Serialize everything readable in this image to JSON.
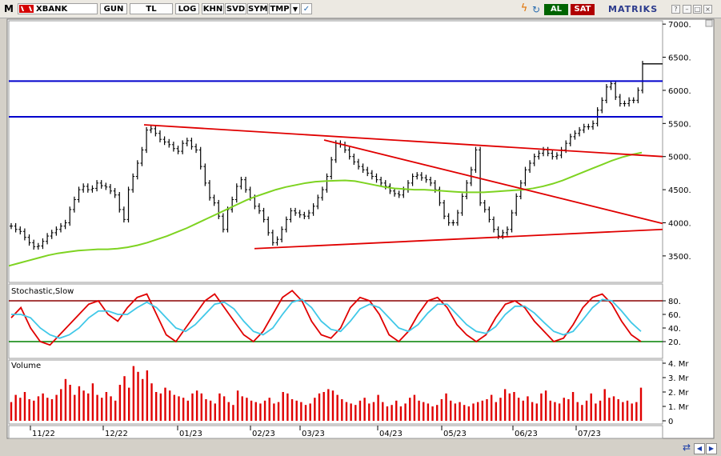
{
  "toolbar": {
    "logo": "M",
    "symbol": "XBANK",
    "buttons": [
      "GUN",
      "TL",
      "LOG",
      "KHN",
      "SVD",
      "SYM",
      "TMP"
    ],
    "buy_label": "AL",
    "sell_label": "SAT",
    "brand": "MATRIKS",
    "colors": {
      "buy": "#006400",
      "sell": "#b00000",
      "brand": "#2b3a8c"
    }
  },
  "chart_data": [
    {
      "type": "line",
      "panel": "price",
      "style": "ohlc-bars",
      "x_ticks": [
        "11/22",
        "12/22",
        "01/23",
        "02/23",
        "03/23",
        "04/23",
        "05/23",
        "06/23",
        "07/23"
      ],
      "y_ticks": [
        "7000.",
        "6500.",
        "6000.",
        "5500.",
        "5000.",
        "4500.",
        "4000.",
        "3500."
      ],
      "ylim": [
        3100,
        7050
      ],
      "grid": false,
      "close_series": [
        3950,
        3900,
        3870,
        3780,
        3700,
        3640,
        3650,
        3720,
        3800,
        3850,
        3900,
        3950,
        4000,
        4200,
        4350,
        4500,
        4550,
        4500,
        4520,
        4600,
        4560,
        4540,
        4480,
        4420,
        4200,
        4050,
        4500,
        4700,
        4900,
        5100,
        5400,
        5420,
        5350,
        5260,
        5220,
        5180,
        5120,
        5080,
        5200,
        5240,
        5150,
        5100,
        4850,
        4600,
        4380,
        4300,
        4100,
        3900,
        4200,
        4350,
        4550,
        4650,
        4500,
        4380,
        4250,
        4180,
        4050,
        3850,
        3700,
        3750,
        3900,
        4050,
        4180,
        4150,
        4120,
        4100,
        4150,
        4250,
        4380,
        4500,
        4700,
        4950,
        5200,
        5180,
        5100,
        5000,
        4920,
        4850,
        4800,
        4750,
        4700,
        4650,
        4600,
        4550,
        4480,
        4440,
        4420,
        4500,
        4600,
        4700,
        4720,
        4680,
        4650,
        4600,
        4500,
        4300,
        4100,
        4000,
        4000,
        4150,
        4400,
        4600,
        4800,
        5100,
        4300,
        4200,
        4050,
        3900,
        3800,
        3850,
        3900,
        4150,
        4400,
        4600,
        4800,
        4900,
        5000,
        5050,
        5100,
        5050,
        5000,
        5020,
        5100,
        5200,
        5300,
        5350,
        5400,
        5450,
        5450,
        5500,
        5700,
        5850,
        6050,
        6100,
        5900,
        5800,
        5800,
        5850,
        5850,
        6000,
        6400
      ],
      "indicators": {
        "moving_average": {
          "color": "#7ed321",
          "values": [
            3350,
            3390,
            3430,
            3470,
            3510,
            3540,
            3560,
            3580,
            3590,
            3600,
            3600,
            3610,
            3630,
            3660,
            3700,
            3750,
            3800,
            3860,
            3920,
            3990,
            4060,
            4130,
            4200,
            4270,
            4340,
            4400,
            4450,
            4500,
            4540,
            4570,
            4600,
            4620,
            4630,
            4635,
            4640,
            4630,
            4600,
            4570,
            4540,
            4520,
            4510,
            4500,
            4500,
            4490,
            4480,
            4470,
            4460,
            4460,
            4460,
            4470,
            4480,
            4490,
            4500,
            4520,
            4550,
            4590,
            4640,
            4700,
            4760,
            4820,
            4880,
            4940,
            4990,
            5030,
            5060
          ]
        },
        "trendlines": {
          "color": "#e00000"
        },
        "horizontal_levels": {
          "color": "#0000cc",
          "values": [
            6140,
            5600
          ]
        }
      }
    },
    {
      "type": "line",
      "panel": "oscillator",
      "title": "Stochastic,Slow",
      "y_ticks": [
        "80.",
        "60.",
        "40.",
        "20."
      ],
      "ylim": [
        0,
        100
      ],
      "levels": [
        {
          "value": 80,
          "color": "#8b0000"
        },
        {
          "value": 20,
          "color": "#008000"
        }
      ],
      "series": [
        {
          "color": "#e00000",
          "values": [
            55,
            70,
            40,
            20,
            15,
            30,
            45,
            60,
            75,
            80,
            60,
            50,
            70,
            85,
            90,
            60,
            30,
            20,
            40,
            60,
            80,
            90,
            70,
            50,
            30,
            20,
            35,
            60,
            85,
            95,
            80,
            50,
            30,
            25,
            40,
            70,
            85,
            80,
            60,
            30,
            20,
            35,
            60,
            80,
            85,
            70,
            45,
            30,
            20,
            30,
            55,
            75,
            80,
            70,
            50,
            35,
            20,
            25,
            45,
            70,
            85,
            90,
            75,
            50,
            30,
            20
          ]
        },
        {
          "color": "#40c8e8",
          "values": [
            60,
            60,
            55,
            40,
            30,
            25,
            30,
            40,
            55,
            65,
            65,
            60,
            60,
            70,
            78,
            70,
            55,
            40,
            35,
            45,
            60,
            75,
            78,
            68,
            50,
            35,
            30,
            40,
            60,
            78,
            82,
            70,
            50,
            38,
            35,
            50,
            68,
            75,
            70,
            55,
            40,
            35,
            45,
            62,
            75,
            75,
            60,
            45,
            35,
            32,
            42,
            60,
            72,
            72,
            62,
            48,
            35,
            30,
            35,
            52,
            70,
            82,
            80,
            65,
            48,
            35
          ]
        }
      ]
    },
    {
      "type": "bar",
      "panel": "volume",
      "title": "Volume",
      "y_ticks": [
        "4. Mr",
        "3. Mr",
        "2. Mr",
        "1. Mr",
        "0"
      ],
      "ylim": [
        0,
        4
      ],
      "color": "#e00000",
      "values": [
        1.3,
        1.8,
        1.6,
        2.0,
        1.5,
        1.4,
        1.7,
        1.9,
        1.6,
        1.5,
        1.8,
        2.2,
        2.9,
        2.5,
        1.8,
        2.4,
        2.1,
        1.9,
        2.6,
        1.8,
        1.6,
        2.0,
        1.7,
        1.4,
        2.5,
        3.1,
        2.3,
        3.8,
        3.4,
        2.9,
        3.5,
        2.6,
        2.0,
        1.9,
        2.3,
        2.1,
        1.8,
        1.7,
        1.6,
        1.4,
        1.9,
        2.1,
        1.9,
        1.5,
        1.4,
        1.2,
        1.9,
        1.7,
        1.3,
        1.1,
        2.1,
        1.7,
        1.6,
        1.4,
        1.3,
        1.2,
        1.4,
        1.6,
        1.2,
        1.3,
        2.0,
        1.9,
        1.5,
        1.4,
        1.3,
        1.1,
        1.2,
        1.6,
        1.9,
        2.0,
        2.2,
        2.1,
        1.8,
        1.5,
        1.3,
        1.2,
        1.1,
        1.4,
        1.6,
        1.2,
        1.3,
        1.8,
        1.3,
        1.0,
        1.1,
        1.4,
        1.0,
        1.2,
        1.6,
        1.8,
        1.4,
        1.3,
        1.2,
        1.0,
        1.1,
        1.5,
        1.9,
        1.4,
        1.2,
        1.3,
        1.1,
        1.0,
        1.2,
        1.3,
        1.4,
        1.5,
        1.8,
        1.3,
        1.6,
        2.2,
        1.9,
        2.0,
        1.6,
        1.4,
        1.7,
        1.3,
        1.2,
        1.9,
        2.1,
        1.4,
        1.3,
        1.2,
        1.6,
        1.5,
        2.0,
        1.3,
        1.1,
        1.4,
        1.9,
        1.2,
        1.4,
        2.2,
        1.6,
        1.7,
        1.5,
        1.3,
        1.4,
        1.2,
        1.3,
        2.3
      ]
    }
  ]
}
